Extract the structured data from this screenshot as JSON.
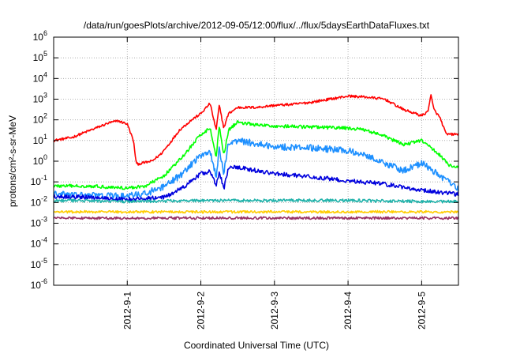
{
  "chart_data": {
    "type": "line",
    "title": "/data/run/goesPlots/archive/2012-09-05/12:00/flux/../flux/5daysEarthDataFluxes.txt",
    "xlabel": "Coordinated Universal Time (UTC)",
    "ylabel": "protons/cm²-s-sr-MeV",
    "y_scale": "log",
    "ylim_exponents": [
      -6,
      6
    ],
    "y_ticks": [
      {
        "base": "10",
        "exp": "-6"
      },
      {
        "base": "10",
        "exp": "-5"
      },
      {
        "base": "10",
        "exp": "-4"
      },
      {
        "base": "10",
        "exp": "-3"
      },
      {
        "base": "10",
        "exp": "-2"
      },
      {
        "base": "10",
        "exp": "-1"
      },
      {
        "base": "10",
        "exp": "0"
      },
      {
        "base": "10",
        "exp": "1"
      },
      {
        "base": "10",
        "exp": "2"
      },
      {
        "base": "10",
        "exp": "3"
      },
      {
        "base": "10",
        "exp": "4"
      },
      {
        "base": "10",
        "exp": "5"
      },
      {
        "base": "10",
        "exp": "6"
      }
    ],
    "xlim": [
      "2012-08-31T00:00",
      "2012-09-05T12:00"
    ],
    "x_ticks": [
      "2012-9-1",
      "2012-9-2",
      "2012-9-3",
      "2012-9-4",
      "2012-9-5"
    ],
    "x_tick_dates": [
      "2012-09-01T00:00",
      "2012-09-02T00:00",
      "2012-09-03T00:00",
      "2012-09-04T00:00",
      "2012-09-05T00:00"
    ],
    "grid": true,
    "series": [
      {
        "color": "#ff0000",
        "noise": 0.06,
        "points": [
          [
            "2012-08-31T00:00",
            1.0
          ],
          [
            "2012-08-31T06:00",
            1.15
          ],
          [
            "2012-08-31T12:00",
            1.5
          ],
          [
            "2012-08-31T18:00",
            1.85
          ],
          [
            "2012-08-31T21:00",
            1.95
          ],
          [
            "2012-09-01T00:00",
            1.8
          ],
          [
            "2012-09-01T02:00",
            1.0
          ],
          [
            "2012-09-01T03:00",
            -0.15
          ],
          [
            "2012-09-01T08:00",
            0.0
          ],
          [
            "2012-09-01T11:00",
            0.35
          ],
          [
            "2012-09-01T14:00",
            0.9
          ],
          [
            "2012-09-01T17:00",
            1.5
          ],
          [
            "2012-09-01T21:00",
            2.0
          ],
          [
            "2012-09-02T00:00",
            2.3
          ],
          [
            "2012-09-02T03:00",
            2.8
          ],
          [
            "2012-09-02T05:00",
            1.5
          ],
          [
            "2012-09-02T06:00",
            2.7
          ],
          [
            "2012-09-02T07:30",
            1.6
          ],
          [
            "2012-09-02T09:00",
            2.3
          ],
          [
            "2012-09-02T12:00",
            2.6
          ],
          [
            "2012-09-02T18:00",
            2.6
          ],
          [
            "2012-09-03T00:00",
            2.7
          ],
          [
            "2012-09-03T06:00",
            2.75
          ],
          [
            "2012-09-03T12:00",
            2.85
          ],
          [
            "2012-09-03T18:00",
            3.0
          ],
          [
            "2012-09-04T00:00",
            3.15
          ],
          [
            "2012-09-04T06:00",
            3.1
          ],
          [
            "2012-09-04T12:00",
            3.0
          ],
          [
            "2012-09-04T18:00",
            2.5
          ],
          [
            "2012-09-05T00:00",
            2.2
          ],
          [
            "2012-09-05T02:00",
            2.4
          ],
          [
            "2012-09-05T03:00",
            3.2
          ],
          [
            "2012-09-05T04:00",
            2.5
          ],
          [
            "2012-09-05T06:00",
            2.1
          ],
          [
            "2012-09-05T08:00",
            1.3
          ],
          [
            "2012-09-05T12:00",
            1.3
          ]
        ]
      },
      {
        "color": "#00ff00",
        "noise": 0.08,
        "points": [
          [
            "2012-08-31T00:00",
            -1.2
          ],
          [
            "2012-08-31T12:00",
            -1.2
          ],
          [
            "2012-09-01T00:00",
            -1.3
          ],
          [
            "2012-09-01T06:00",
            -1.2
          ],
          [
            "2012-09-01T12:00",
            -0.7
          ],
          [
            "2012-09-01T18:00",
            0.2
          ],
          [
            "2012-09-02T00:00",
            1.3
          ],
          [
            "2012-09-02T03:00",
            1.6
          ],
          [
            "2012-09-02T05:00",
            0.2
          ],
          [
            "2012-09-02T06:00",
            1.7
          ],
          [
            "2012-09-02T07:30",
            0.3
          ],
          [
            "2012-09-02T09:00",
            1.5
          ],
          [
            "2012-09-02T12:00",
            1.9
          ],
          [
            "2012-09-02T18:00",
            1.75
          ],
          [
            "2012-09-03T00:00",
            1.7
          ],
          [
            "2012-09-03T12:00",
            1.65
          ],
          [
            "2012-09-04T00:00",
            1.6
          ],
          [
            "2012-09-04T06:00",
            1.5
          ],
          [
            "2012-09-04T12:00",
            1.2
          ],
          [
            "2012-09-04T18:00",
            0.8
          ],
          [
            "2012-09-05T00:00",
            1.0
          ],
          [
            "2012-09-05T06:00",
            0.3
          ],
          [
            "2012-09-05T09:00",
            -0.2
          ],
          [
            "2012-09-05T12:00",
            -0.3
          ]
        ]
      },
      {
        "color": "#1e90ff",
        "noise": 0.16,
        "points": [
          [
            "2012-08-31T00:00",
            -1.6
          ],
          [
            "2012-08-31T12:00",
            -1.65
          ],
          [
            "2012-09-01T00:00",
            -1.7
          ],
          [
            "2012-09-01T06:00",
            -1.55
          ],
          [
            "2012-09-01T12:00",
            -1.25
          ],
          [
            "2012-09-01T18:00",
            -0.6
          ],
          [
            "2012-09-02T00:00",
            0.3
          ],
          [
            "2012-09-02T03:00",
            0.5
          ],
          [
            "2012-09-02T05:00",
            -0.8
          ],
          [
            "2012-09-02T06:00",
            0.6
          ],
          [
            "2012-09-02T07:30",
            -0.6
          ],
          [
            "2012-09-02T09:00",
            0.9
          ],
          [
            "2012-09-02T12:00",
            1.0
          ],
          [
            "2012-09-03T00:00",
            0.7
          ],
          [
            "2012-09-03T12:00",
            0.65
          ],
          [
            "2012-09-04T00:00",
            0.5
          ],
          [
            "2012-09-04T06:00",
            0.3
          ],
          [
            "2012-09-04T12:00",
            -0.1
          ],
          [
            "2012-09-04T18:00",
            -0.45
          ],
          [
            "2012-09-05T00:00",
            -0.1
          ],
          [
            "2012-09-05T06:00",
            -0.7
          ],
          [
            "2012-09-05T12:00",
            -1.3
          ]
        ]
      },
      {
        "color": "#0000dd",
        "noise": 0.1,
        "points": [
          [
            "2012-08-31T00:00",
            -1.7
          ],
          [
            "2012-08-31T12:00",
            -1.75
          ],
          [
            "2012-09-01T00:00",
            -1.85
          ],
          [
            "2012-09-01T12:00",
            -1.75
          ],
          [
            "2012-09-01T18:00",
            -1.3
          ],
          [
            "2012-09-02T00:00",
            -0.6
          ],
          [
            "2012-09-02T03:00",
            -0.5
          ],
          [
            "2012-09-02T05:00",
            -1.2
          ],
          [
            "2012-09-02T06:00",
            -0.5
          ],
          [
            "2012-09-02T07:30",
            -1.35
          ],
          [
            "2012-09-02T09:00",
            -0.3
          ],
          [
            "2012-09-02T12:00",
            -0.3
          ],
          [
            "2012-09-03T00:00",
            -0.6
          ],
          [
            "2012-09-03T12:00",
            -0.75
          ],
          [
            "2012-09-04T00:00",
            -0.95
          ],
          [
            "2012-09-04T12:00",
            -1.1
          ],
          [
            "2012-09-04T18:00",
            -1.25
          ],
          [
            "2012-09-05T00:00",
            -1.4
          ],
          [
            "2012-09-05T12:00",
            -1.6
          ]
        ]
      },
      {
        "color": "#20b2aa",
        "noise": 0.07,
        "points": [
          [
            "2012-08-31T00:00",
            -1.9
          ],
          [
            "2012-09-01T00:00",
            -1.95
          ],
          [
            "2012-09-02T00:00",
            -1.9
          ],
          [
            "2012-09-03T00:00",
            -1.9
          ],
          [
            "2012-09-04T00:00",
            -1.9
          ],
          [
            "2012-09-05T00:00",
            -1.95
          ],
          [
            "2012-09-05T12:00",
            -1.95
          ]
        ]
      },
      {
        "color": "#ffcc00",
        "noise": 0.06,
        "points": [
          [
            "2012-08-31T00:00",
            -2.45
          ],
          [
            "2012-09-02T00:00",
            -2.45
          ],
          [
            "2012-09-04T00:00",
            -2.45
          ],
          [
            "2012-09-05T12:00",
            -2.45
          ]
        ]
      },
      {
        "color": "#993366",
        "noise": 0.06,
        "points": [
          [
            "2012-08-31T00:00",
            -2.75
          ],
          [
            "2012-09-02T00:00",
            -2.75
          ],
          [
            "2012-09-04T00:00",
            -2.75
          ],
          [
            "2012-09-05T12:00",
            -2.75
          ]
        ]
      }
    ]
  }
}
